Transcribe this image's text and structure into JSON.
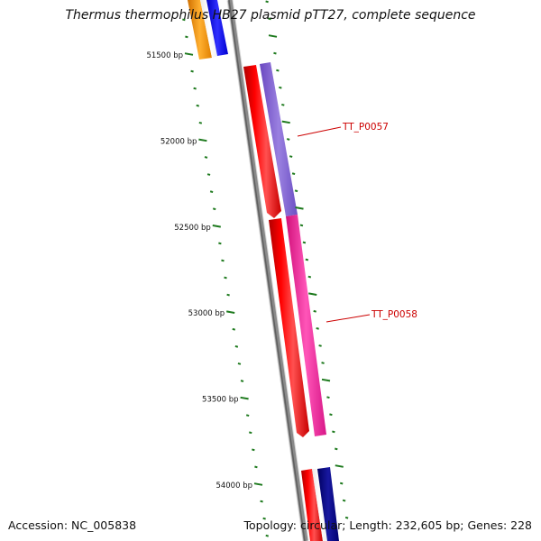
{
  "title": "Thermus thermophilus HB27 plasmid pTT27, complete sequence",
  "footer": {
    "accession": "Accession: NC_005838",
    "summary": "Topology: circular; Length: 232,605 bp; Genes: 228"
  },
  "ticks": [
    {
      "label": "51500 bp",
      "bp": 51500
    },
    {
      "label": "52000 bp",
      "bp": 52000
    },
    {
      "label": "52500 bp",
      "bp": 52500
    },
    {
      "label": "53000 bp",
      "bp": 53000
    },
    {
      "label": "53500 bp",
      "bp": 53500
    },
    {
      "label": "54000 bp",
      "bp": 54000
    }
  ],
  "gene_labels": [
    {
      "name": "TT_P0057",
      "color": "#cc0000"
    },
    {
      "name": "TT_P0058",
      "color": "#cc0000"
    }
  ],
  "colors": {
    "backbone": "#808080",
    "tick": "#1e7a1e",
    "gene_red": "#ff0000",
    "gene_purple": "#8060d0",
    "gene_pink": "#ff2aa0",
    "gene_orange": "#ff9900",
    "gene_blue": "#1010ff",
    "gene_navy": "#000080",
    "label_line": "#cc0000"
  }
}
